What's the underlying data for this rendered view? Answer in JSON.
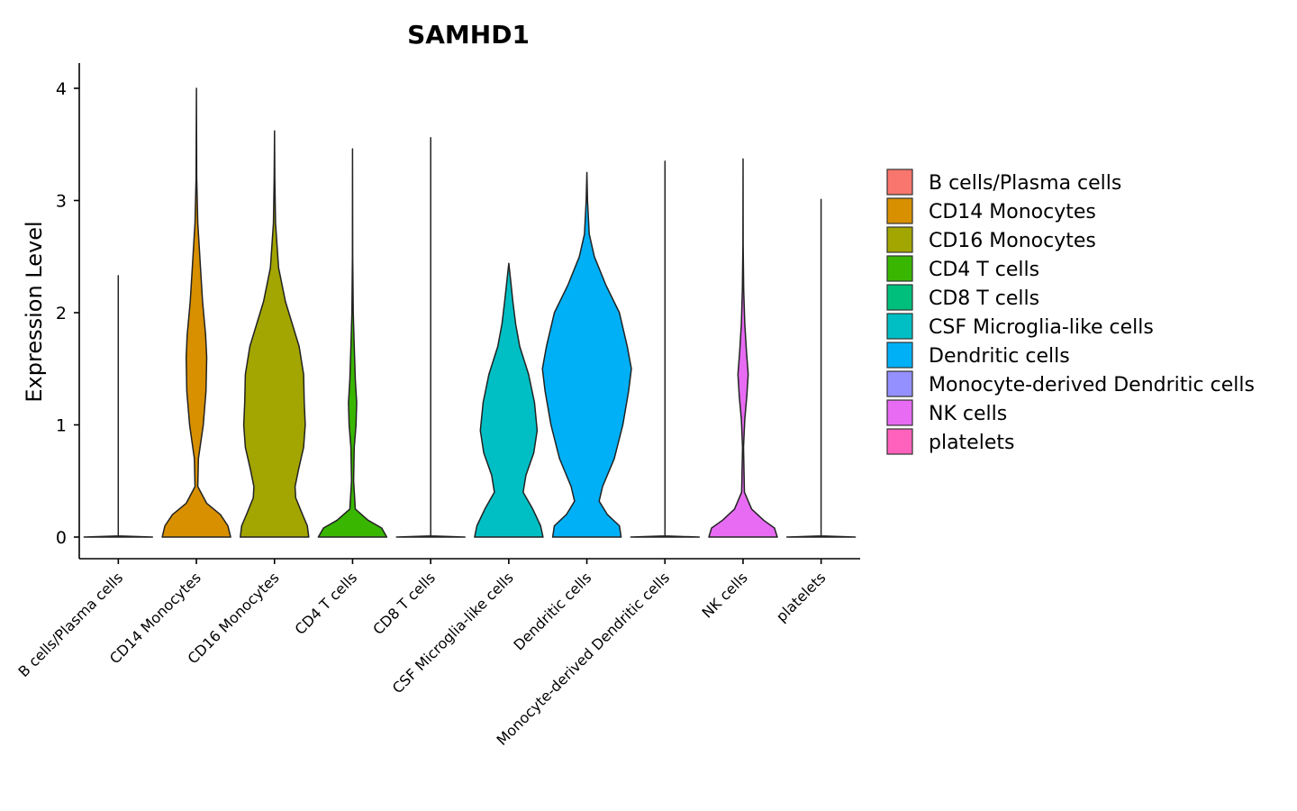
{
  "chart_data": {
    "type": "violin",
    "title": "SAMHD1",
    "ylabel": "Expression Level",
    "xlabel": "",
    "ylim": [
      -0.2,
      4.2
    ],
    "yticks": [
      0,
      1,
      2,
      3,
      4
    ],
    "categories": [
      "B cells/Plasma cells",
      "CD14 Monocytes",
      "CD16 Monocytes",
      "CD4 T cells",
      "CD8 T cells",
      "CSF Microglia-like cells",
      "Dendritic cells",
      "Monocyte-derived Dendritic cells",
      "NK cells",
      "platelets"
    ],
    "colors": [
      "#F8766D",
      "#D89000",
      "#A3A500",
      "#39B600",
      "#00BF7D",
      "#00BFC4",
      "#00B0F6",
      "#9590FF",
      "#E76BF3",
      "#FF62BC"
    ],
    "max_values": [
      2.33,
      4.0,
      3.62,
      3.46,
      3.56,
      2.44,
      3.25,
      3.35,
      3.37,
      3.01
    ],
    "legend": {
      "position": "right",
      "entries": [
        "B cells/Plasma cells",
        "CD14 Monocytes",
        "CD16 Monocytes",
        "CD4 T cells",
        "CD8 T cells",
        "CSF Microglia-like cells",
        "Dendritic cells",
        "Monocyte-derived Dendritic cells",
        "NK cells",
        "platelets"
      ]
    },
    "density_profiles": [
      [
        [
          0,
          1.0
        ],
        [
          0.01,
          0.0
        ],
        [
          2.33,
          0.0
        ]
      ],
      [
        [
          0,
          1.0
        ],
        [
          0.1,
          0.92
        ],
        [
          0.2,
          0.7
        ],
        [
          0.3,
          0.3
        ],
        [
          0.45,
          0.04
        ],
        [
          0.7,
          0.06
        ],
        [
          1.0,
          0.2
        ],
        [
          1.3,
          0.28
        ],
        [
          1.6,
          0.3
        ],
        [
          1.8,
          0.27
        ],
        [
          2.1,
          0.18
        ],
        [
          2.4,
          0.12
        ],
        [
          2.8,
          0.04
        ],
        [
          3.2,
          0.01
        ],
        [
          4.0,
          0.0
        ]
      ],
      [
        [
          0,
          1.0
        ],
        [
          0.1,
          0.96
        ],
        [
          0.2,
          0.82
        ],
        [
          0.35,
          0.62
        ],
        [
          0.45,
          0.6
        ],
        [
          0.6,
          0.7
        ],
        [
          0.8,
          0.85
        ],
        [
          1.0,
          0.9
        ],
        [
          1.2,
          0.87
        ],
        [
          1.45,
          0.85
        ],
        [
          1.7,
          0.72
        ],
        [
          1.9,
          0.52
        ],
        [
          2.1,
          0.32
        ],
        [
          2.4,
          0.12
        ],
        [
          2.8,
          0.03
        ],
        [
          3.2,
          0.01
        ],
        [
          3.62,
          0.0
        ]
      ],
      [
        [
          0,
          1.0
        ],
        [
          0.08,
          0.85
        ],
        [
          0.15,
          0.45
        ],
        [
          0.25,
          0.08
        ],
        [
          0.5,
          0.03
        ],
        [
          0.8,
          0.05
        ],
        [
          1.0,
          0.1
        ],
        [
          1.2,
          0.12
        ],
        [
          1.4,
          0.08
        ],
        [
          1.7,
          0.05
        ],
        [
          2.0,
          0.02
        ],
        [
          2.5,
          0.005
        ],
        [
          3.46,
          0.0
        ]
      ],
      [
        [
          0,
          1.0
        ],
        [
          0.01,
          0.0
        ],
        [
          3.56,
          0.0
        ]
      ],
      [
        [
          0,
          1.0
        ],
        [
          0.1,
          0.93
        ],
        [
          0.25,
          0.7
        ],
        [
          0.4,
          0.42
        ],
        [
          0.55,
          0.5
        ],
        [
          0.75,
          0.73
        ],
        [
          0.95,
          0.83
        ],
        [
          1.2,
          0.75
        ],
        [
          1.45,
          0.58
        ],
        [
          1.7,
          0.32
        ],
        [
          1.9,
          0.2
        ],
        [
          2.1,
          0.12
        ],
        [
          2.3,
          0.05
        ],
        [
          2.44,
          0.0
        ]
      ],
      [
        [
          0,
          1.0
        ],
        [
          0.1,
          0.95
        ],
        [
          0.2,
          0.6
        ],
        [
          0.32,
          0.36
        ],
        [
          0.45,
          0.46
        ],
        [
          0.7,
          0.8
        ],
        [
          1.0,
          1.05
        ],
        [
          1.3,
          1.22
        ],
        [
          1.5,
          1.3
        ],
        [
          1.7,
          1.18
        ],
        [
          2.0,
          0.95
        ],
        [
          2.25,
          0.55
        ],
        [
          2.5,
          0.22
        ],
        [
          2.7,
          0.07
        ],
        [
          3.0,
          0.02
        ],
        [
          3.25,
          0.0
        ]
      ],
      [
        [
          0,
          1.0
        ],
        [
          0.01,
          0.0
        ],
        [
          3.35,
          0.0
        ]
      ],
      [
        [
          0,
          1.0
        ],
        [
          0.08,
          0.92
        ],
        [
          0.15,
          0.6
        ],
        [
          0.25,
          0.25
        ],
        [
          0.4,
          0.04
        ],
        [
          0.8,
          0.015
        ],
        [
          1.05,
          0.05
        ],
        [
          1.25,
          0.11
        ],
        [
          1.45,
          0.15
        ],
        [
          1.65,
          0.1
        ],
        [
          1.9,
          0.05
        ],
        [
          2.2,
          0.02
        ],
        [
          2.6,
          0.005
        ],
        [
          3.37,
          0.0
        ]
      ],
      [
        [
          0,
          1.0
        ],
        [
          0.01,
          0.0
        ],
        [
          3.01,
          0.0
        ]
      ]
    ]
  }
}
